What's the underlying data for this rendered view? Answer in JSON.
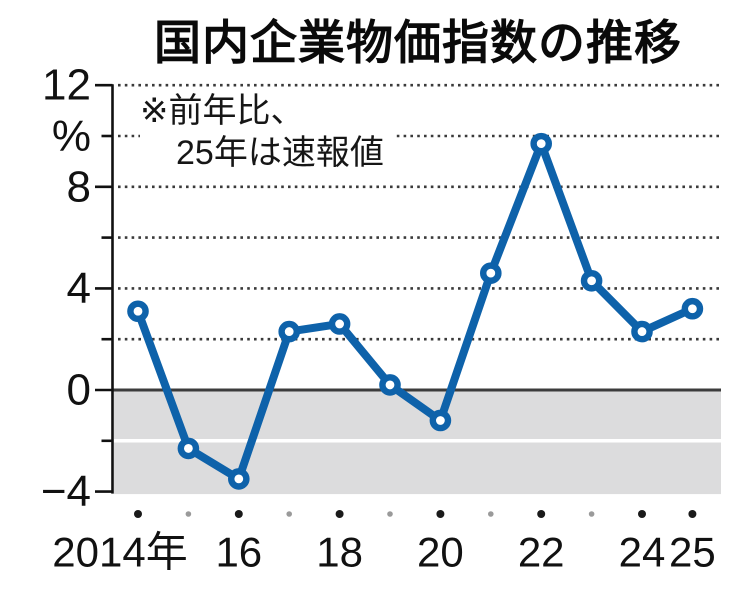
{
  "title": "国内企業物価指数の推移",
  "note": {
    "line1": "※前年比、",
    "line2": "25年は速報値"
  },
  "chart_data": {
    "type": "line",
    "title": "国内企業物価指数の推移",
    "annotation": "※前年比、25年は速報値",
    "unit": "%",
    "categories": [
      2014,
      2015,
      2016,
      2017,
      2018,
      2019,
      2020,
      2021,
      2022,
      2023,
      2024,
      2025
    ],
    "values": [
      3.1,
      -2.3,
      -3.5,
      2.3,
      2.6,
      0.2,
      -1.2,
      4.6,
      9.7,
      4.3,
      2.3,
      3.2
    ],
    "ylim": [
      -4,
      12
    ],
    "grid": "dotted-horizontal",
    "legend": "none",
    "y_axis": {
      "labels": [
        {
          "value": 12,
          "text": "12"
        },
        {
          "value": 10,
          "text": "%"
        },
        {
          "value": 8,
          "text": "8"
        },
        {
          "value": 4,
          "text": "4"
        },
        {
          "value": 0,
          "text": "0"
        },
        {
          "value": -4,
          "text": "−4"
        }
      ],
      "major_ticks": [
        12,
        8,
        4,
        0,
        -4
      ],
      "minor_ticks": [
        10,
        6,
        2,
        -2
      ],
      "dotted_gridlines": [
        12,
        10,
        8,
        6,
        4,
        2
      ],
      "zero_line": 0,
      "negative_band": [
        -4,
        0
      ],
      "band_inner_line": -2
    },
    "x_axis": {
      "tick_years_major": [
        2014,
        2016,
        2018,
        2020,
        2022,
        2024,
        2025
      ],
      "tick_years_minor": [
        2015,
        2017,
        2019,
        2021,
        2023
      ],
      "labels": [
        {
          "year": 2014,
          "text": "2014年"
        },
        {
          "year": 2016,
          "text": "16"
        },
        {
          "year": 2018,
          "text": "18"
        },
        {
          "year": 2020,
          "text": "20"
        },
        {
          "year": 2022,
          "text": "22"
        },
        {
          "year": 2024,
          "text": "24"
        },
        {
          "year": 2025,
          "text": "25"
        }
      ]
    },
    "colors": {
      "line": "#0e62aa",
      "marker_fill": "#ffffff",
      "negative_band": "#dcdcdd",
      "band_inner_line": "#ffffff",
      "zero_line": "#3c3c3c",
      "grid_dots": "#3a3a3a",
      "axis": "#111111",
      "text": "#111111",
      "minor_dot": "#9a9a9a",
      "major_dot": "#1a1a1a"
    }
  }
}
